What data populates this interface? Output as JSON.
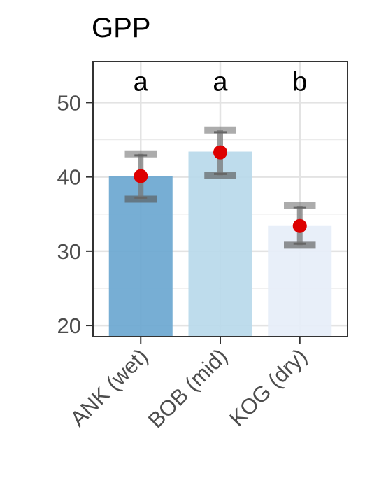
{
  "chart_data": {
    "type": "bar",
    "title": "GPP",
    "xlabel": "",
    "ylabel": "",
    "categories": [
      "ANK (wet)",
      "BOB (mid)",
      "KOG (dry)"
    ],
    "values": [
      40.1,
      43.4,
      33.4
    ],
    "mean_points": [
      40.1,
      43.3,
      33.4
    ],
    "error_low": [
      37.0,
      40.2,
      30.8
    ],
    "error_high": [
      43.1,
      46.3,
      36.1
    ],
    "inner_error_low": [
      37.2,
      40.4,
      31.0
    ],
    "inner_error_high": [
      42.9,
      46.0,
      35.9
    ],
    "group_letters": [
      "a",
      "a",
      "b"
    ],
    "bar_colors": [
      "#6ba7d0",
      "#b8d9ea",
      "#e6eef8"
    ],
    "point_color": "#dd0000",
    "ylim": [
      18.5,
      55.5
    ],
    "yticks": [
      20,
      30,
      40,
      50
    ],
    "grid": true
  }
}
